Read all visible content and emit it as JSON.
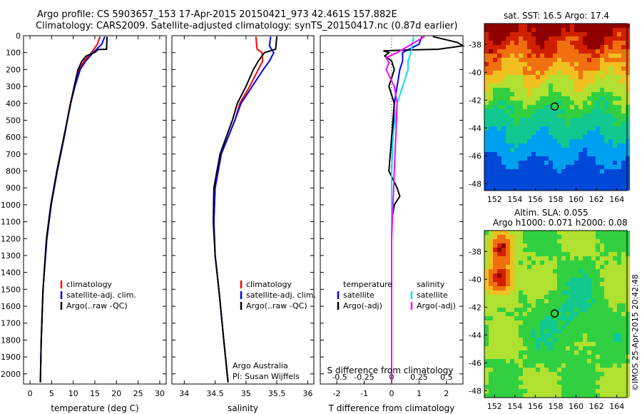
{
  "header": {
    "line1": "Argo profile: CS 5903657_153 17-Apr-2015 20150421_973 42.461S 157.882E",
    "line2": "Climatology: CARS2009. Satellite-adjusted climatology: synTS_20150417.nc (0.87d earlier)"
  },
  "colors": {
    "climatology": "#ff0000",
    "satellite": "#0000ff",
    "argo": "#000000",
    "salinity_satellite": "#00e5ee",
    "salinity_argo": "#ff00ff",
    "sst_high": "#a00000",
    "sst_low": "#0030a0"
  },
  "chart_data": [
    {
      "type": "line",
      "xlabel": "temperature (deg C)",
      "ylabel": "",
      "xlim": [
        -1.5,
        31.5
      ],
      "ylim": [
        2060,
        0
      ],
      "xticks": [
        "0",
        "5",
        "10",
        "15",
        "20",
        "25",
        "30"
      ],
      "yticks": [
        "0",
        "100",
        "200",
        "300",
        "400",
        "500",
        "600",
        "700",
        "800",
        "900",
        "1000",
        "1100",
        "1200",
        "1300",
        "1400",
        "1500",
        "1600",
        "1700",
        "1800",
        "1900",
        "2000"
      ],
      "legend": [
        "climatology",
        "satellite-adj. clim.",
        "Argo(..raw -QC)"
      ],
      "series": [
        {
          "name": "climatology",
          "depth": [
            5,
            50,
            100,
            150,
            200,
            300,
            400,
            600,
            800,
            1000,
            1200,
            1500,
            1800,
            2050
          ],
          "values": [
            16.2,
            15.6,
            14.2,
            12.5,
            11.3,
            10.3,
            9.3,
            7.9,
            6.3,
            4.9,
            3.9,
            3.0,
            2.6,
            2.4
          ]
        },
        {
          "name": "satellite-adj. clim.",
          "depth": [
            5,
            50,
            100,
            150,
            200,
            300,
            400,
            600,
            800,
            1000,
            1200,
            1500,
            1800,
            2050
          ],
          "values": [
            17.3,
            16.6,
            14.6,
            12.9,
            11.6,
            10.4,
            9.4,
            7.9,
            6.3,
            4.9,
            3.9,
            3.0,
            2.6,
            2.4
          ]
        },
        {
          "name": "Argo(..raw -QC)",
          "depth": [
            5,
            80,
            82,
            100,
            120,
            150,
            200,
            300,
            400,
            600,
            800,
            1000,
            1200,
            1500,
            1800,
            2050
          ],
          "values": [
            17.8,
            17.7,
            15.8,
            14.9,
            13.0,
            12.0,
            11.1,
            10.2,
            9.4,
            7.8,
            6.2,
            4.8,
            3.8,
            3.0,
            2.6,
            2.4
          ]
        }
      ]
    },
    {
      "type": "line",
      "xlabel": "salinity",
      "ylabel": "",
      "xlim": [
        33.8,
        36.1
      ],
      "ylim": [
        2060,
        0
      ],
      "xticks": [
        "34",
        "34.5",
        "35",
        "35.5",
        "36"
      ],
      "legend": [
        "climatology",
        "satellite-adj. clim.",
        "Argo(..raw -QC)"
      ],
      "annotation": [
        "Argo Australia",
        "PI: Susan Wijffels"
      ],
      "series": [
        {
          "name": "climatology",
          "depth": [
            5,
            80,
            100,
            150,
            200,
            300,
            400,
            500,
            700,
            900,
            1100,
            1300,
            1500,
            1800,
            2050
          ],
          "values": [
            35.16,
            35.18,
            35.26,
            35.27,
            35.2,
            35.06,
            34.9,
            34.82,
            34.6,
            34.5,
            34.48,
            34.5,
            34.56,
            34.64,
            34.71
          ]
        },
        {
          "name": "satellite-adj. clim.",
          "depth": [
            5,
            60,
            100,
            150,
            200,
            300,
            400,
            500,
            700,
            900,
            1100,
            1300,
            1500,
            1800,
            2050
          ],
          "values": [
            35.4,
            35.38,
            35.45,
            35.38,
            35.28,
            35.1,
            34.92,
            34.82,
            34.6,
            34.5,
            34.48,
            34.5,
            34.56,
            34.64,
            34.71
          ]
        },
        {
          "name": "Argo(..raw -QC)",
          "depth": [
            5,
            80,
            100,
            150,
            200,
            300,
            400,
            500,
            700,
            900,
            1100,
            1300,
            1500,
            1800,
            2050
          ],
          "values": [
            35.5,
            35.48,
            35.3,
            35.2,
            35.12,
            35.0,
            34.86,
            34.78,
            34.58,
            34.48,
            34.47,
            34.5,
            34.56,
            34.64,
            34.71
          ]
        }
      ]
    },
    {
      "type": "line",
      "xlabel": "T difference from climatology",
      "xlabel_secondary": "S difference from climatology",
      "xlim": [
        -2.6,
        2.6
      ],
      "ylim": [
        2060,
        0
      ],
      "xticks": [
        "-2",
        "-1",
        "0",
        "1",
        "2"
      ],
      "xticks_secondary": [
        "-0.5",
        "-0.25",
        "0",
        "0.25",
        "0.5"
      ],
      "legend_left_title": "temperature",
      "legend_right_title": "salinity",
      "legend": [
        "satellite",
        "Argo(-adj)",
        "satellite",
        "Argo(-adj)"
      ],
      "series": [
        {
          "name": "T satellite",
          "depth": [
            5,
            50,
            100,
            150,
            200,
            400,
            600,
            800,
            1000,
            1500,
            2050
          ],
          "values": [
            1.1,
            1.0,
            0.4,
            0.4,
            0.3,
            0.1,
            0.05,
            0.0,
            0.0,
            0.0,
            0.0
          ]
        },
        {
          "name": "T Argo(-adj)",
          "depth": [
            5,
            40,
            60,
            80,
            85,
            90,
            100,
            120,
            150,
            200,
            300,
            400,
            600,
            800,
            900,
            950,
            1000,
            1100,
            1500,
            2050
          ],
          "values": [
            1.5,
            2.4,
            2.6,
            1.7,
            0.5,
            -0.3,
            -0.1,
            -0.25,
            0.0,
            0.1,
            -0.1,
            0.1,
            0.0,
            -0.1,
            0.2,
            0.3,
            0.1,
            0.0,
            0.0,
            0.0
          ]
        },
        {
          "name": "S satellite",
          "depth": [
            5,
            100,
            150,
            200,
            400,
            600,
            800,
            1000,
            1500,
            2050
          ],
          "values": [
            0.8,
            0.7,
            0.6,
            0.6,
            0.2,
            0.05,
            0.0,
            0.0,
            0.0,
            0.0
          ]
        },
        {
          "name": "S Argo(-adj)",
          "depth": [
            5,
            100,
            130,
            160,
            200,
            300,
            400,
            600,
            800,
            1000,
            1200,
            1500,
            1800,
            2050
          ],
          "values": [
            1.2,
            0.2,
            -0.2,
            -0.1,
            -0.2,
            0.1,
            0.2,
            0.15,
            0.1,
            0.05,
            0.0,
            0.0,
            0.0,
            0.0
          ]
        }
      ]
    },
    {
      "type": "heatmap",
      "title": "sat. SST: 16.5 Argo: 17.4",
      "xlim": [
        151,
        165
      ],
      "ylim": [
        -48.5,
        -36.5
      ],
      "xticks": [
        "152",
        "154",
        "156",
        "158",
        "160",
        "162",
        "164"
      ],
      "yticks": [
        "-38",
        "-40",
        "-42",
        "-44",
        "-46",
        "-48"
      ],
      "marker": {
        "lon": 157.9,
        "lat": -42.46
      }
    },
    {
      "type": "heatmap",
      "title": "Altim. SLA: 0.055",
      "subtitle": "Argo h1000: 0.071 h2000: 0.08",
      "xlim": [
        151,
        165
      ],
      "ylim": [
        -48.5,
        -36.5
      ],
      "xticks": [
        "152",
        "154",
        "156",
        "158",
        "160",
        "162",
        "164"
      ],
      "yticks": [
        "-38",
        "-40",
        "-42",
        "-44",
        "-46",
        "-48"
      ],
      "marker": {
        "lon": 157.9,
        "lat": -42.46
      }
    }
  ],
  "footer_credit": "©IMOS 25-Apr-2015 20:42:48"
}
